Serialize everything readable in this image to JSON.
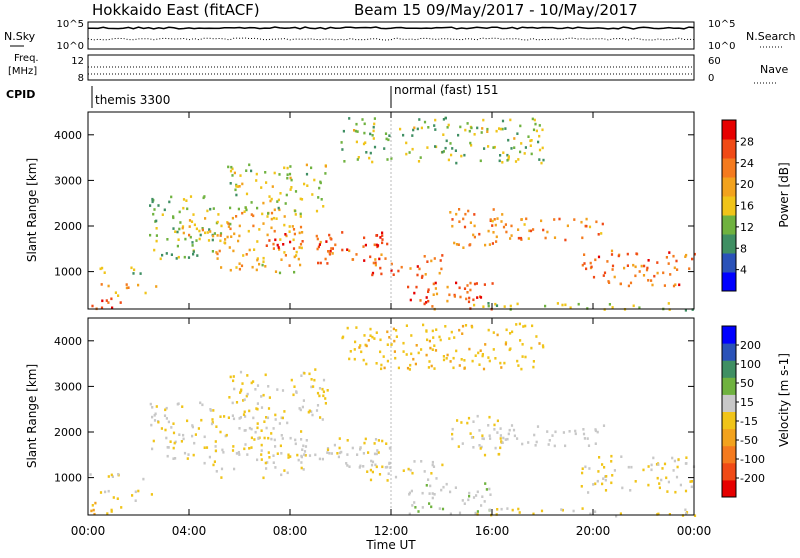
{
  "header": {
    "station": "Hokkaido East (fitACF)",
    "beam_info": "Beam 15 09/May/2017 - 10/May/2017"
  },
  "top_panels": {
    "nsky_label": "N.Sky",
    "nsearch_label": "N.Search",
    "noise_ticks_left": [
      "10^5",
      "10^0"
    ],
    "noise_ticks_right": [
      "10^5",
      "10^0"
    ],
    "freq_label_line1": "Freq.",
    "freq_label_line2": "[MHz]",
    "freq_ticks_left": [
      "12",
      "8"
    ],
    "nave_label": "Nave",
    "nave_ticks_right": [
      "60",
      "0"
    ],
    "cpid_label": "CPID",
    "cpid_segments": [
      {
        "name": "themis 3300",
        "start_hour": 0
      },
      {
        "name": "normal (fast) 151",
        "start_hour": 12
      }
    ]
  },
  "x_axis": {
    "label": "Time UT",
    "ticks": [
      "00:00",
      "04:00",
      "08:00",
      "12:00",
      "16:00",
      "20:00",
      "00:00"
    ],
    "range_hours": [
      0,
      24
    ]
  },
  "chart_data": [
    {
      "type": "heatmap",
      "name": "power",
      "ylabel": "Slant Range [km]",
      "ylim": [
        180,
        4500
      ],
      "y_ticks": [
        "1000",
        "2000",
        "3000",
        "4000"
      ],
      "colorbar_label": "Power [dB]",
      "colorbar_ticks": [
        "28",
        "24",
        "20",
        "16",
        "12",
        "8",
        "4"
      ],
      "colorbar_colors": [
        "#0000ff",
        "#2a52b8",
        "#3f8f63",
        "#6fb23f",
        "#f0c419",
        "#f2a21d",
        "#f47a1e",
        "#f04a16",
        "#e60000"
      ],
      "colorbar_range": [
        0,
        32
      ],
      "bands": [
        {
          "t0": 0.0,
          "t1": 2.3,
          "r0": 950,
          "r1": 1120,
          "level": 14
        },
        {
          "t0": 0.0,
          "t1": 1.6,
          "r0": 200,
          "r1": 500,
          "level": 27
        },
        {
          "t0": 0.4,
          "t1": 2.7,
          "r0": 500,
          "r1": 750,
          "level": 20
        },
        {
          "t0": 2.4,
          "t1": 5.0,
          "r0": 1300,
          "r1": 2700,
          "level": 12
        },
        {
          "t0": 3.2,
          "t1": 6.0,
          "r0": 1700,
          "r1": 2200,
          "level": 17
        },
        {
          "t0": 5.0,
          "t1": 8.5,
          "r0": 1000,
          "r1": 2400,
          "level": 19
        },
        {
          "t0": 5.5,
          "t1": 9.5,
          "r0": 2300,
          "r1": 3400,
          "level": 14
        },
        {
          "t0": 7.0,
          "t1": 11.8,
          "r0": 1500,
          "r1": 1900,
          "level": 28
        },
        {
          "t0": 9.0,
          "t1": 12.0,
          "r0": 1200,
          "r1": 1700,
          "level": 25
        },
        {
          "t0": 11.0,
          "t1": 14.0,
          "r0": 900,
          "r1": 1400,
          "level": 24
        },
        {
          "t0": 12.5,
          "t1": 16.0,
          "r0": 200,
          "r1": 900,
          "level": 25
        },
        {
          "t0": 14.3,
          "t1": 16.4,
          "r0": 1500,
          "r1": 2400,
          "level": 23
        },
        {
          "t0": 15.8,
          "t1": 20.5,
          "r0": 1700,
          "r1": 2200,
          "level": 22
        },
        {
          "t0": 19.5,
          "t1": 24.0,
          "r0": 700,
          "r1": 1500,
          "level": 24
        },
        {
          "t0": 15.0,
          "t1": 24.0,
          "r0": 180,
          "r1": 350,
          "level": 14
        },
        {
          "t0": 10.0,
          "t1": 18.0,
          "r0": 3400,
          "r1": 4400,
          "level": 13
        }
      ]
    },
    {
      "type": "heatmap",
      "name": "velocity",
      "ylabel": "Slant Range [km]",
      "ylim": [
        180,
        4500
      ],
      "y_ticks": [
        "1000",
        "2000",
        "3000",
        "4000"
      ],
      "colorbar_label": "Velocity [m s-1]",
      "colorbar_ticks": [
        "200",
        "100",
        "50",
        "15",
        "-15",
        "-50",
        "-100",
        "-200"
      ],
      "colorbar_colors": [
        "#e60000",
        "#f04a16",
        "#f47a1e",
        "#f2a21d",
        "#f0c419",
        "#c8c8c8",
        "#6fb23f",
        "#3f8f63",
        "#2a52b8",
        "#0000ff"
      ],
      "colorbar_range": [
        -250,
        250
      ],
      "bands": [
        {
          "t0": 0.0,
          "t1": 2.3,
          "r0": 950,
          "r1": 1120,
          "level": 0
        },
        {
          "t0": 0.0,
          "t1": 1.6,
          "r0": 200,
          "r1": 500,
          "level": -60
        },
        {
          "t0": 0.4,
          "t1": 2.7,
          "r0": 500,
          "r1": 750,
          "level": 0
        },
        {
          "t0": 2.4,
          "t1": 5.0,
          "r0": 1300,
          "r1": 2700,
          "level": 0
        },
        {
          "t0": 5.0,
          "t1": 8.5,
          "r0": 1000,
          "r1": 2400,
          "level": 0
        },
        {
          "t0": 5.5,
          "t1": 9.5,
          "r0": 2300,
          "r1": 3400,
          "level": 0
        },
        {
          "t0": 7.0,
          "t1": 11.8,
          "r0": 1500,
          "r1": 1900,
          "level": 0
        },
        {
          "t0": 9.0,
          "t1": 12.0,
          "r0": 1200,
          "r1": 1700,
          "level": 30
        },
        {
          "t0": 11.0,
          "t1": 14.0,
          "r0": 900,
          "r1": 1400,
          "level": 0
        },
        {
          "t0": 12.5,
          "t1": 16.0,
          "r0": 200,
          "r1": 900,
          "level": 40
        },
        {
          "t0": 14.3,
          "t1": 16.4,
          "r0": 1500,
          "r1": 2400,
          "level": 0
        },
        {
          "t0": 15.8,
          "t1": 20.5,
          "r0": 1700,
          "r1": 2200,
          "level": 30
        },
        {
          "t0": 19.5,
          "t1": 24.0,
          "r0": 700,
          "r1": 1500,
          "level": 0
        },
        {
          "t0": 15.0,
          "t1": 24.0,
          "r0": 180,
          "r1": 350,
          "level": 0
        },
        {
          "t0": 10.0,
          "t1": 18.0,
          "r0": 3400,
          "r1": 4400,
          "level": -40
        }
      ]
    }
  ]
}
